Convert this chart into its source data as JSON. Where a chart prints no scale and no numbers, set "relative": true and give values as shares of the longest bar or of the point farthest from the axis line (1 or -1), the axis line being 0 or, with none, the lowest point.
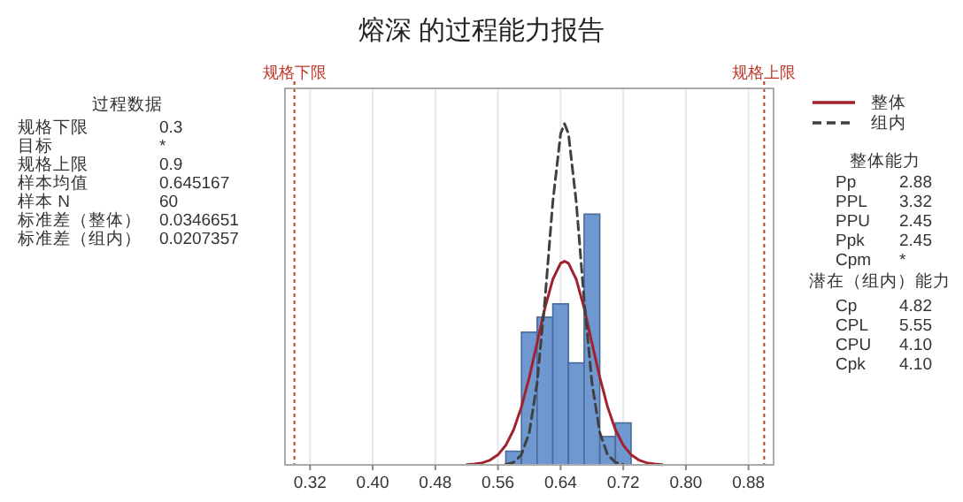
{
  "chart_data": [
    {
      "type": "other",
      "title": "过程数据",
      "categories": [
        "规格下限",
        "目标",
        "规格上限",
        "样本均值",
        "样本 N",
        "标准差（整体）",
        "标准差（组内）"
      ],
      "value_labels": [
        "0.3",
        "*",
        "0.9",
        "0.645167",
        "60",
        "0.0346651",
        "0.0207357"
      ]
    },
    {
      "type": "histogram",
      "title": "熔深 的过程能力报告",
      "relative": true,
      "bins": [
        0.57,
        0.59,
        0.61,
        0.63,
        0.65,
        0.67,
        0.69,
        0.71,
        0.73
      ],
      "values": [
        0.04,
        0.389,
        0.433,
        0.472,
        0.299,
        0.735,
        0.083,
        0.123
      ],
      "color": "#7098d0",
      "series": [
        {
          "name": "整体",
          "type": "line",
          "line_style": "solid",
          "color": "#a3212d",
          "x": [
            0.52,
            0.53,
            0.54,
            0.55,
            0.56,
            0.57,
            0.58,
            0.59,
            0.6,
            0.61,
            0.62,
            0.63,
            0.64,
            0.645,
            0.65,
            0.66,
            0.67,
            0.68,
            0.69,
            0.7,
            0.71,
            0.72,
            0.73,
            0.74,
            0.75,
            0.76,
            0.77
          ],
          "values": [
            0.0009,
            0.0024,
            0.0061,
            0.014,
            0.0296,
            0.0575,
            0.103,
            0.17,
            0.257,
            0.358,
            0.46,
            0.544,
            0.591,
            0.597,
            0.591,
            0.544,
            0.46,
            0.358,
            0.257,
            0.17,
            0.103,
            0.0575,
            0.0296,
            0.014,
            0.0061,
            0.0024,
            0.0009
          ]
        },
        {
          "name": "组内",
          "type": "line",
          "line_style": "dashed",
          "color": "#404040",
          "x": [
            0.57,
            0.58,
            0.59,
            0.6,
            0.61,
            0.62,
            0.63,
            0.64,
            0.645,
            0.65,
            0.66,
            0.67,
            0.68,
            0.69,
            0.7,
            0.71,
            0.72
          ],
          "values": [
            0.0014,
            0.0074,
            0.0297,
            0.095,
            0.2407,
            0.484,
            0.77,
            0.971,
            1,
            0.971,
            0.77,
            0.484,
            0.2407,
            0.095,
            0.0297,
            0.0074,
            0.0014
          ]
        }
      ],
      "xlim": [
        0.288,
        0.912
      ],
      "xticks": [
        0.32,
        {
          "value": 0.4,
          "label": "0.40"
        },
        0.48,
        0.56,
        0.64,
        0.72,
        {
          "value": 0.8,
          "label": "0.80"
        },
        0.88
      ],
      "grid": "x",
      "legend": "right",
      "ref_lines": [
        {
          "axis": "x",
          "value": 0.3,
          "label": "规格下限",
          "color": "#c0392b",
          "line_style": "dashed"
        },
        {
          "axis": "x",
          "value": 0.9,
          "label": "规格上限",
          "color": "#c0392b",
          "line_style": "dashed"
        }
      ]
    },
    {
      "type": "other",
      "title": "整体能力",
      "categories": [
        "Pp",
        "PPL",
        "PPU",
        "Ppk",
        "Cpm"
      ],
      "value_labels": [
        "2.88",
        "3.32",
        "2.45",
        "2.45",
        "*"
      ]
    },
    {
      "type": "other",
      "title": "潜在（组内）能力",
      "categories": [
        "Cp",
        "CPL",
        "CPU",
        "Cpk"
      ],
      "value_labels": [
        "4.82",
        "5.55",
        "4.10",
        "4.10"
      ]
    }
  ]
}
